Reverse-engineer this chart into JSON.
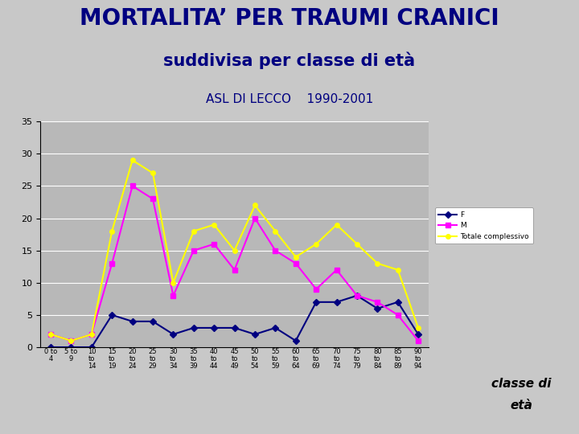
{
  "title1": "MORTALITA’ PER TRAUMI CRANICI",
  "title2": "suddivisa per classe di età",
  "title3": "ASL DI LECCO    1990-2001",
  "xlabel_line1": "classe di",
  "xlabel_line2": "età",
  "header_bg": "#3ECFA0",
  "plot_bg": "#B8B8B8",
  "outer_bg": "#C8C8C8",
  "categories": [
    "0 to\n4",
    "5 to\n9",
    "10\nto\n14",
    "15\nto\n19",
    "20\nto\n24",
    "25\nto\n29",
    "30\nto\n34",
    "35\nto\n39",
    "40\nto\n44",
    "45\nto\n49",
    "50\nto\n54",
    "55\nto\n59",
    "60\nto\n64",
    "65\nto\n69",
    "70\nto\n74",
    "75\nto\n79",
    "80\nto\n84",
    "85\nto\n89",
    "90\nto\n94"
  ],
  "F": [
    0,
    0,
    0,
    5,
    4,
    4,
    2,
    3,
    3,
    3,
    2,
    3,
    1,
    7,
    7,
    8,
    6,
    7,
    2
  ],
  "M": [
    2,
    1,
    2,
    13,
    25,
    23,
    8,
    15,
    16,
    12,
    20,
    15,
    13,
    9,
    12,
    8,
    7,
    5,
    1
  ],
  "Totale": [
    2,
    1,
    2,
    18,
    29,
    27,
    10,
    18,
    19,
    15,
    22,
    18,
    14,
    16,
    19,
    16,
    13,
    12,
    3
  ],
  "ylim": [
    0,
    35
  ],
  "yticks": [
    0,
    5,
    10,
    15,
    20,
    25,
    30,
    35
  ],
  "color_F": "#000080",
  "color_M": "#FF00FF",
  "color_Totale": "#FFFF00",
  "legend_F": "F",
  "legend_M": "M",
  "legend_Totale": "Totale complessivo",
  "title1_color": "#000080",
  "title2_color": "#000080",
  "title3_color": "#000080"
}
